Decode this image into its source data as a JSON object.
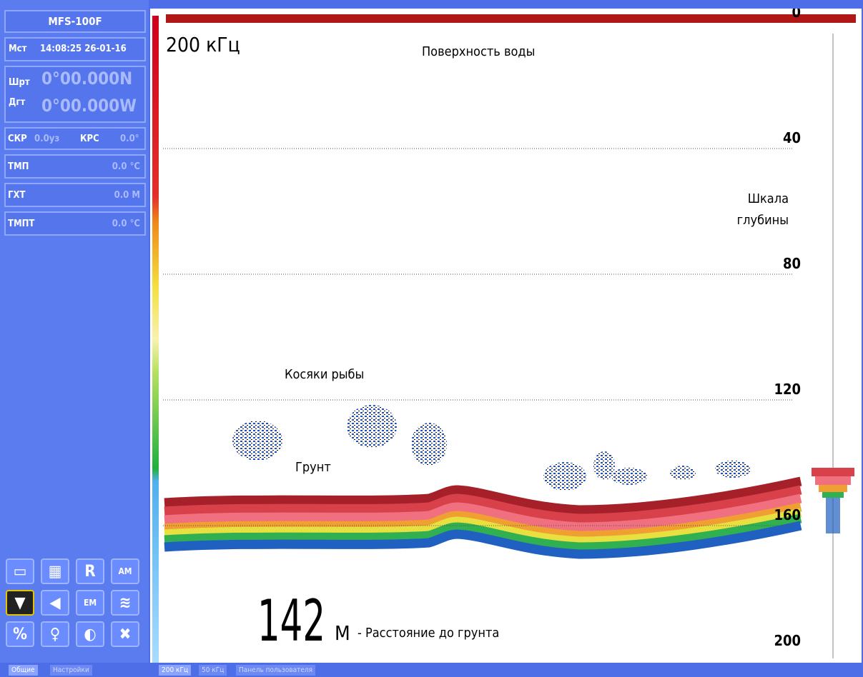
{
  "side_panel": {
    "model": "MFS-100F",
    "time_label": "Мст",
    "time": "14:08:25 26-01-16",
    "lat_label": "Шрт",
    "lat": "0°00.000N",
    "lon_label": "Дгт",
    "lon": "0°00.000W",
    "speed_label": "СКР",
    "speed": "0.0уз",
    "course_label": "КРС",
    "course": "0.0°",
    "temp_label": "ТМП",
    "temp": "0.0 °C",
    "depth_label": "ГХТ",
    "depth": "0.0 М",
    "water_temp_label": "ТМПТ",
    "water_temp": "0.0 °C",
    "buttons": [
      "R",
      "AM",
      "EM"
    ]
  },
  "echogram": {
    "frequency": "200 кГц",
    "surface_note": "Поверхность воды",
    "scale_note_1": "Шкала",
    "scale_note_2": "глубины",
    "fish_note": "Косяки рыбы",
    "ground_note": "Грунт",
    "bottom_depth": 142,
    "bottom_unit": "М",
    "bottom_note": "- Расстояние до грунта",
    "depth_ticks": [
      0,
      40,
      80,
      120,
      160,
      200
    ]
  },
  "tabs": {
    "left": [
      "Общие",
      "Настройки"
    ],
    "right": [
      "200 кГц",
      "50 кГц",
      "Панель пользователя"
    ]
  }
}
